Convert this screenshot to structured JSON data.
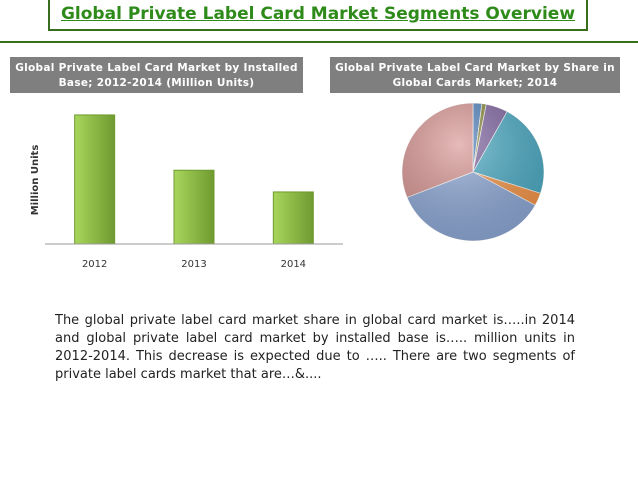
{
  "title": "Global Private Label Card Market Segments Overview",
  "chart_data": [
    {
      "type": "bar",
      "title": "Global Private Label Card Market by Installed Base; 2012-2014 (Million Units)",
      "y_label": "Million Units",
      "categories": [
        "2012",
        "2013",
        "2014"
      ],
      "values": [
        119,
        68,
        48
      ],
      "color": "#92c04a",
      "ylim": [
        0,
        130
      ]
    },
    {
      "type": "pie",
      "title": "Global Private Label Card Market by Share in Global Cards Market; 2014",
      "categories": [
        null,
        null,
        null,
        null,
        null,
        null,
        null
      ],
      "values": [
        2,
        1,
        5,
        22,
        3,
        36,
        31
      ],
      "colors": [
        "#4f81bd",
        "#8a8a3a",
        "#8064a2",
        "#4bacc6",
        "#f79646",
        "#8ea9d8",
        "#d99694"
      ]
    }
  ],
  "body": "The global private label card market share in global card market is…..in 2014 and global private label card market by installed base is….. million units in 2012-2014. This decrease is expected due to ….. There are two segments of private label cards market that are…&...."
}
